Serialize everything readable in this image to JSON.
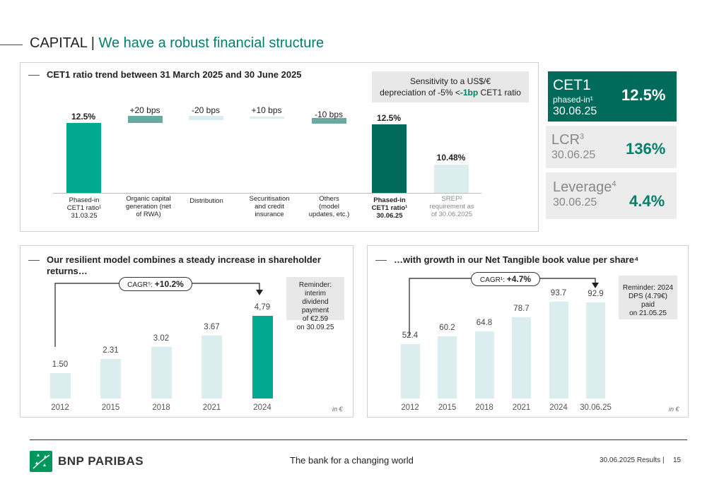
{
  "title": {
    "main": "CAPITAL |",
    "sub": "We have a robust financial structure"
  },
  "cet1_panel": {
    "heading": "CET1 ratio trend between 31 March 2025 and 30 June 2025",
    "sensitivity_line1": "Sensitivity to a US$/€",
    "sensitivity_line2_a": "depreciation of -5% <",
    "sensitivity_line2_b": "-1bp",
    "sensitivity_line2_c": " CET1 ratio",
    "bars": [
      {
        "value_label": "12.5%",
        "category": [
          "Phased-in",
          "CET1 ratio¹",
          "31.03.25"
        ]
      },
      {
        "value_label": "+20 bps",
        "category": [
          "Organic capital",
          "generation (net",
          "of RWA)"
        ]
      },
      {
        "value_label": "-20 bps",
        "category": [
          "Distribution"
        ]
      },
      {
        "value_label": "+10 bps",
        "category": [
          "Securitisation",
          "and credit",
          "insurance"
        ]
      },
      {
        "value_label": "-10 bps",
        "category": [
          "Others",
          "(model",
          "updates, etc.)"
        ]
      },
      {
        "value_label": "12.5%",
        "category": [
          "Phased-in",
          "CET1 ratio¹",
          "30.06.25"
        ]
      },
      {
        "value_label": "10.48%",
        "category": [
          "SREP²",
          "requirement as",
          "of 30.06.2025"
        ]
      }
    ]
  },
  "kpis": {
    "cet1": {
      "name": "CET1",
      "sub": "phased-in¹",
      "date": "30.06.25",
      "value": "12.5%"
    },
    "lcr": {
      "name": "LCR",
      "sup": "3",
      "date": "30.06.25",
      "value": "136%"
    },
    "leverage": {
      "name": "Leverage",
      "sup": "4",
      "date": "30.06.25",
      "value": "4.4%"
    }
  },
  "dps_panel": {
    "heading_line1": "Our resilient model combines a steady increase in shareholder",
    "heading_line2": "returns…",
    "cagr_label": "CAGR⁵: ",
    "cagr_value": "+10.2%",
    "reminder": [
      "Reminder: interim",
      "dividend payment",
      "of €2.59",
      "on 30.09.25"
    ],
    "unit": "in €",
    "colors": {
      "bar": "#dcedf0",
      "highlight": "#00a98f"
    }
  },
  "ntbv_panel": {
    "heading": "…with growth in our Net Tangible book value per share⁴",
    "cagr_label": "CAGR¹: ",
    "cagr_value": "+4.7%",
    "reminder": [
      "Reminder: 2024",
      "DPS (4.79€) paid",
      "on 21.05.25"
    ],
    "unit": "in €"
  },
  "chart_data": [
    {
      "type": "bar",
      "title": "CET1 ratio trend between 31 March 2025 and 30 June 2025",
      "categories": [
        "Phased-in CET1 ratio 31.03.25",
        "Organic capital generation (net of RWA)",
        "Distribution",
        "Securitisation and credit insurance",
        "Others (model updates, etc.)",
        "Phased-in CET1 ratio 30.06.25",
        "SREP requirement as of 30.06.2025"
      ],
      "values": [
        12.5,
        0.2,
        -0.2,
        0.1,
        -0.1,
        12.5,
        10.48
      ]
    },
    {
      "type": "bar",
      "categories": [
        "2012",
        "2015",
        "2018",
        "2021",
        "2024"
      ],
      "values": [
        1.5,
        2.31,
        3.02,
        3.67,
        4.79
      ],
      "value_labels": [
        "1.50",
        "2.31",
        "3.02",
        "3.67",
        "4,79"
      ],
      "ylim": [
        0,
        6
      ]
    },
    {
      "type": "bar",
      "categories": [
        "2012",
        "2015",
        "2018",
        "2021",
        "2024",
        "30.06.25"
      ],
      "values": [
        52.4,
        60.2,
        64.8,
        78.7,
        93.7,
        92.9
      ],
      "ylim": [
        0,
        112
      ]
    }
  ],
  "footer": {
    "brand": "BNP PARIBAS",
    "tagline": "The bank for a changing world",
    "results": "30.06.2025 Results |",
    "page": "15"
  }
}
